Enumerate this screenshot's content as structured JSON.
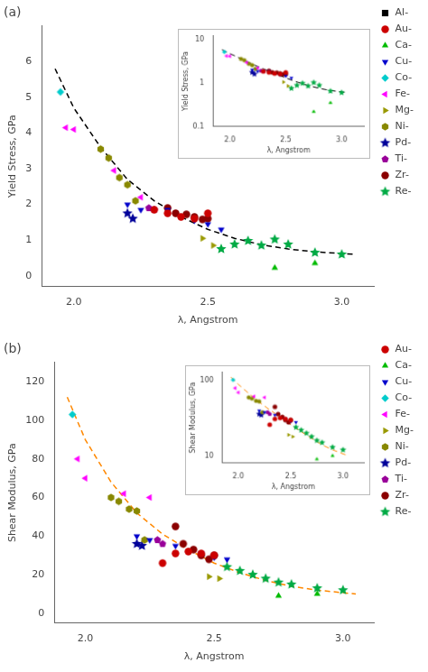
{
  "chart_data": [
    {
      "type": "scatter",
      "title": "(a)",
      "xlabel": "λ, Angstrom",
      "ylabel": "Yield Stress, GPa",
      "xlim": [
        1.88,
        3.12
      ],
      "ylim": [
        -0.3,
        7.0
      ],
      "xticks": [
        {
          "value": 2.0,
          "label": "2.0"
        },
        {
          "value": 2.5,
          "label": "2.5"
        },
        {
          "value": 3.0,
          "label": "3.0"
        }
      ],
      "yticks": [
        0,
        1,
        2,
        3,
        4,
        5,
        6
      ],
      "grid": false,
      "legend": "right",
      "series": [
        {
          "type": "line",
          "color": "black",
          "line_style": "dashed",
          "x": [
            1.93,
            2.0,
            2.1,
            2.2,
            2.3,
            2.4,
            2.5,
            2.6,
            2.7,
            2.8,
            2.9,
            3.05
          ],
          "values": [
            5.8,
            4.7,
            3.6,
            2.7,
            2.1,
            1.65,
            1.3,
            1.05,
            0.87,
            0.75,
            0.67,
            0.6
          ]
        },
        {
          "name": "Al-",
          "marker": "square",
          "color": "#000000",
          "x": [],
          "values": []
        },
        {
          "name": "Au-",
          "marker": "circle",
          "color": "#cc0000",
          "x": [
            2.3,
            2.35,
            2.4,
            2.45,
            2.5
          ],
          "values": [
            1.85,
            1.75,
            1.65,
            1.6,
            1.75
          ]
        },
        {
          "name": "Ca-",
          "marker": "triangle",
          "color": "#00bb00",
          "x": [
            2.75,
            2.9
          ],
          "values": [
            0.22,
            0.35
          ]
        },
        {
          "name": "Cu-",
          "marker": "triangle_down",
          "color": "#0000cc",
          "x": [
            2.2,
            2.25,
            2.35,
            2.45,
            2.5,
            2.55
          ],
          "values": [
            2.0,
            1.85,
            1.85,
            1.55,
            1.45,
            1.3
          ]
        },
        {
          "name": "Co-",
          "marker": "diamond",
          "color": "#00cccc",
          "x": [
            1.95
          ],
          "values": [
            5.15
          ]
        },
        {
          "name": "Fe-",
          "marker": "triangle_left",
          "color": "#ff00ff",
          "x": [
            1.97,
            2.0,
            2.15,
            2.25
          ],
          "values": [
            4.15,
            4.1,
            2.95,
            2.2
          ]
        },
        {
          "name": "Mg-",
          "marker": "triangle_right",
          "color": "#999900",
          "x": [
            2.48,
            2.52
          ],
          "values": [
            1.05,
            0.85
          ]
        },
        {
          "name": "Ni-",
          "marker": "hexagon",
          "color": "#888800",
          "x": [
            2.1,
            2.13,
            2.17,
            2.2,
            2.23
          ],
          "values": [
            3.55,
            3.3,
            2.75,
            2.55,
            2.1
          ]
        },
        {
          "name": "Pd-",
          "marker": "star",
          "color": "#000099",
          "x": [
            2.2,
            2.22
          ],
          "values": [
            1.75,
            1.6
          ]
        },
        {
          "name": "Ti-",
          "marker": "pentagon",
          "color": "#990099",
          "x": [
            2.28,
            2.3
          ],
          "values": [
            1.9,
            1.85
          ]
        },
        {
          "name": "Zr-",
          "marker": "circle",
          "color": "#8b0000",
          "x": [
            2.35,
            2.38,
            2.42,
            2.45,
            2.48,
            2.5
          ],
          "values": [
            1.9,
            1.75,
            1.72,
            1.65,
            1.58,
            1.6
          ]
        },
        {
          "name": "Re-",
          "marker": "star",
          "color": "#00aa44",
          "x": [
            2.55,
            2.6,
            2.65,
            2.7,
            2.75,
            2.8,
            2.9,
            3.0
          ],
          "values": [
            0.75,
            0.88,
            0.98,
            0.85,
            1.02,
            0.88,
            0.65,
            0.6
          ]
        }
      ]
    },
    {
      "type": "scatter",
      "xlabel": "λ, Angstrom",
      "ylabel": "Yield Stress, GPa",
      "log": "y",
      "xlim": [
        1.85,
        3.2
      ],
      "ylim": [
        0.1,
        12
      ],
      "xticks": [
        {
          "value": 2.0,
          "label": "2.0"
        },
        {
          "value": 2.5,
          "label": "2.5"
        },
        {
          "value": 3.0,
          "label": "3.0"
        }
      ],
      "yticks": [
        0.1,
        1,
        10
      ],
      "grid": false,
      "series": [
        {
          "type": "line",
          "color": "black",
          "line_style": "dashed",
          "x": [
            1.93,
            2.0,
            2.1,
            2.2,
            2.3,
            2.4,
            2.5,
            2.6,
            2.7,
            2.8,
            2.9,
            3.05
          ],
          "values": [
            5.8,
            4.7,
            3.6,
            2.7,
            2.1,
            1.65,
            1.3,
            1.05,
            0.87,
            0.75,
            0.67,
            0.6
          ]
        },
        {
          "marker": "circle",
          "color": "#cc0000",
          "x": [
            2.3,
            2.35,
            2.4,
            2.45,
            2.5
          ],
          "values": [
            1.85,
            1.75,
            1.65,
            1.6,
            1.75
          ]
        },
        {
          "marker": "triangle",
          "color": "#00bb00",
          "x": [
            2.75,
            2.9
          ],
          "values": [
            0.22,
            0.35
          ]
        },
        {
          "marker": "triangle_down",
          "color": "#0000cc",
          "x": [
            2.2,
            2.25,
            2.35,
            2.45,
            2.5,
            2.55
          ],
          "values": [
            2.0,
            1.85,
            1.85,
            1.55,
            1.45,
            1.3
          ]
        },
        {
          "marker": "diamond",
          "color": "#00cccc",
          "x": [
            1.95
          ],
          "values": [
            5.15
          ]
        },
        {
          "marker": "triangle_left",
          "color": "#ff00ff",
          "x": [
            1.97,
            2.0,
            2.15,
            2.25
          ],
          "values": [
            4.15,
            4.1,
            2.95,
            2.2
          ]
        },
        {
          "marker": "triangle_right",
          "color": "#999900",
          "x": [
            2.48,
            2.52
          ],
          "values": [
            1.05,
            0.85
          ]
        },
        {
          "marker": "hexagon",
          "color": "#888800",
          "x": [
            2.1,
            2.13,
            2.17,
            2.2,
            2.23
          ],
          "values": [
            3.55,
            3.3,
            2.75,
            2.55,
            2.1
          ]
        },
        {
          "marker": "star",
          "color": "#000099",
          "x": [
            2.2,
            2.22
          ],
          "values": [
            1.75,
            1.6
          ]
        },
        {
          "marker": "pentagon",
          "color": "#990099",
          "x": [
            2.28,
            2.3
          ],
          "values": [
            1.9,
            1.85
          ]
        },
        {
          "marker": "circle",
          "color": "#8b0000",
          "x": [
            2.35,
            2.38,
            2.42,
            2.45,
            2.48,
            2.5
          ],
          "values": [
            1.9,
            1.75,
            1.72,
            1.65,
            1.58,
            1.6
          ]
        },
        {
          "marker": "star",
          "color": "#00aa44",
          "x": [
            2.55,
            2.6,
            2.65,
            2.7,
            2.75,
            2.8,
            2.9,
            3.0
          ],
          "values": [
            0.75,
            0.88,
            0.98,
            0.85,
            1.02,
            0.88,
            0.65,
            0.6
          ]
        }
      ]
    },
    {
      "type": "scatter",
      "title": "(b)",
      "xlabel": "λ, Angstrom",
      "ylabel": "Shear Modulus, GPa",
      "xlim": [
        1.88,
        3.12
      ],
      "ylim": [
        -5,
        130
      ],
      "xticks": [
        {
          "value": 2.0,
          "label": "2.0"
        },
        {
          "value": 2.5,
          "label": "2.5"
        },
        {
          "value": 3.0,
          "label": "3.0"
        }
      ],
      "yticks": [
        0,
        20,
        40,
        60,
        80,
        100,
        120
      ],
      "grid": false,
      "legend": "right",
      "series": [
        {
          "type": "line",
          "color": "#ff8800",
          "line_style": "dashed",
          "x": [
            1.93,
            2.0,
            2.1,
            2.2,
            2.3,
            2.4,
            2.5,
            2.6,
            2.7,
            2.8,
            2.9,
            3.05
          ],
          "values": [
            112,
            90,
            68,
            52,
            41,
            33,
            26,
            21,
            17,
            14,
            12,
            10
          ]
        },
        {
          "name": "Au-",
          "marker": "circle",
          "color": "#cc0000",
          "x": [
            2.3,
            2.35,
            2.4,
            2.45,
            2.5
          ],
          "values": [
            26,
            31,
            32,
            31,
            30
          ]
        },
        {
          "name": "Ca-",
          "marker": "triangle",
          "color": "#00bb00",
          "x": [
            2.75,
            2.9
          ],
          "values": [
            9,
            10
          ]
        },
        {
          "name": "Cu-",
          "marker": "triangle_down",
          "color": "#0000cc",
          "x": [
            2.2,
            2.25,
            2.35,
            2.45,
            2.5,
            2.55
          ],
          "values": [
            40,
            38,
            35,
            31,
            29,
            28
          ]
        },
        {
          "name": "Co-",
          "marker": "diamond",
          "color": "#00cccc",
          "x": [
            1.95
          ],
          "values": [
            103
          ]
        },
        {
          "name": "Fe-",
          "marker": "triangle_left",
          "color": "#ff00ff",
          "x": [
            1.97,
            2.0,
            2.15,
            2.25
          ],
          "values": [
            80,
            70,
            62,
            60
          ]
        },
        {
          "name": "Mg-",
          "marker": "triangle_right",
          "color": "#999900",
          "x": [
            2.48,
            2.52
          ],
          "values": [
            19,
            18
          ]
        },
        {
          "name": "Ni-",
          "marker": "hexagon",
          "color": "#888800",
          "x": [
            2.1,
            2.13,
            2.17,
            2.2,
            2.23
          ],
          "values": [
            60,
            58,
            54,
            53,
            38
          ]
        },
        {
          "name": "Pd-",
          "marker": "star",
          "color": "#000099",
          "x": [
            2.2,
            2.22
          ],
          "values": [
            36,
            35
          ]
        },
        {
          "name": "Ti-",
          "marker": "pentagon",
          "color": "#990099",
          "x": [
            2.28,
            2.3
          ],
          "values": [
            38,
            36
          ]
        },
        {
          "name": "Zr-",
          "marker": "circle",
          "color": "#8b0000",
          "x": [
            2.35,
            2.38,
            2.42,
            2.45,
            2.48,
            2.5
          ],
          "values": [
            45,
            36,
            33,
            30,
            28,
            30
          ]
        },
        {
          "name": "Re-",
          "marker": "star",
          "color": "#00aa44",
          "x": [
            2.55,
            2.6,
            2.65,
            2.7,
            2.75,
            2.8,
            2.9,
            3.0
          ],
          "values": [
            24,
            22,
            20,
            18,
            16,
            15,
            13,
            12
          ]
        }
      ]
    },
    {
      "type": "scatter",
      "xlabel": "λ, Angstrom",
      "ylabel": "Shear Modulus, GPa",
      "log": "y",
      "xlim": [
        1.85,
        3.2
      ],
      "ylim": [
        8,
        130
      ],
      "xticks": [
        {
          "value": 2.0,
          "label": "2.0"
        },
        {
          "value": 2.5,
          "label": "2.5"
        },
        {
          "value": 3.0,
          "label": "3.0"
        }
      ],
      "yticks": [
        10,
        100
      ],
      "grid": false,
      "series": [
        {
          "type": "line",
          "color": "#ff8800",
          "line_style": "dashed",
          "x": [
            1.93,
            2.0,
            2.1,
            2.2,
            2.3,
            2.4,
            2.5,
            2.6,
            2.7,
            2.8,
            2.9,
            3.05
          ],
          "values": [
            112,
            90,
            68,
            52,
            41,
            33,
            26,
            21,
            17,
            14,
            12,
            10
          ]
        },
        {
          "marker": "circle",
          "color": "#cc0000",
          "x": [
            2.3,
            2.35,
            2.4,
            2.45,
            2.5
          ],
          "values": [
            26,
            31,
            32,
            31,
            30
          ]
        },
        {
          "marker": "triangle",
          "color": "#00bb00",
          "x": [
            2.75,
            2.9
          ],
          "values": [
            9,
            10
          ]
        },
        {
          "marker": "triangle_down",
          "color": "#0000cc",
          "x": [
            2.2,
            2.25,
            2.35,
            2.45,
            2.5,
            2.55
          ],
          "values": [
            40,
            38,
            35,
            31,
            29,
            28
          ]
        },
        {
          "marker": "diamond",
          "color": "#00cccc",
          "x": [
            1.95
          ],
          "values": [
            103
          ]
        },
        {
          "marker": "triangle_left",
          "color": "#ff00ff",
          "x": [
            1.97,
            2.0,
            2.15,
            2.25
          ],
          "values": [
            80,
            70,
            62,
            60
          ]
        },
        {
          "marker": "triangle_right",
          "color": "#999900",
          "x": [
            2.48,
            2.52
          ],
          "values": [
            19,
            18
          ]
        },
        {
          "marker": "hexagon",
          "color": "#888800",
          "x": [
            2.1,
            2.13,
            2.17,
            2.2,
            2.23
          ],
          "values": [
            60,
            58,
            54,
            53,
            38
          ]
        },
        {
          "marker": "star",
          "color": "#000099",
          "x": [
            2.2,
            2.22
          ],
          "values": [
            36,
            35
          ]
        },
        {
          "marker": "pentagon",
          "color": "#990099",
          "x": [
            2.28,
            2.3
          ],
          "values": [
            38,
            36
          ]
        },
        {
          "marker": "circle",
          "color": "#8b0000",
          "x": [
            2.35,
            2.38,
            2.42,
            2.45,
            2.48,
            2.5
          ],
          "values": [
            45,
            36,
            33,
            30,
            28,
            30
          ]
        },
        {
          "marker": "star",
          "color": "#00aa44",
          "x": [
            2.55,
            2.6,
            2.65,
            2.7,
            2.75,
            2.8,
            2.9,
            3.0
          ],
          "values": [
            24,
            22,
            20,
            18,
            16,
            15,
            13,
            12
          ]
        }
      ]
    }
  ]
}
